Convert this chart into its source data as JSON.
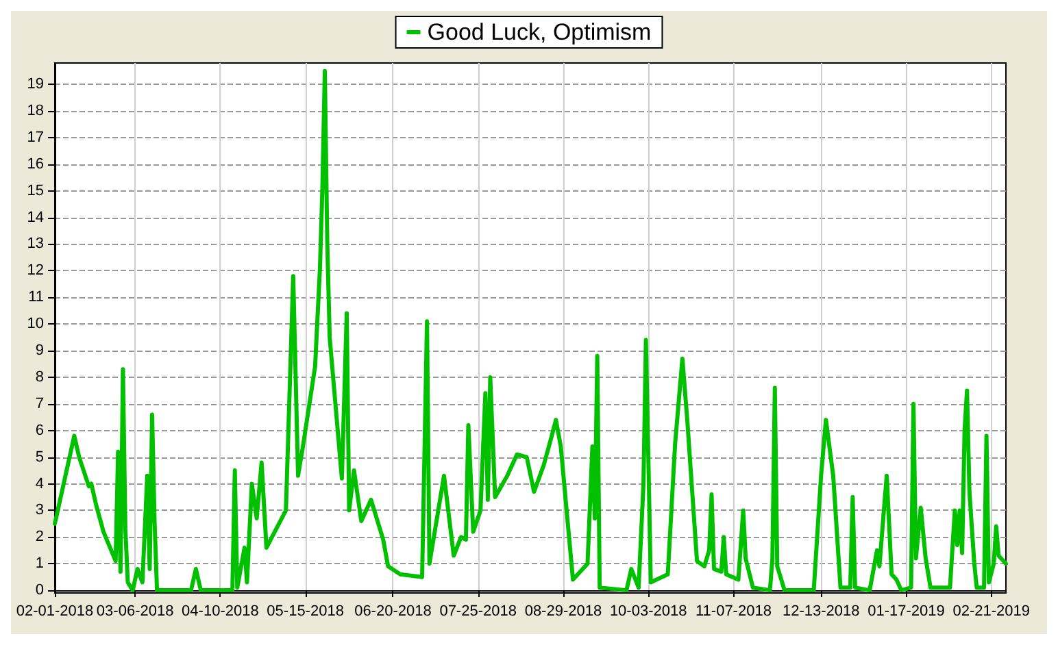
{
  "chart_data": {
    "type": "line",
    "xlim": [
      "2018-02-01",
      "2019-02-27"
    ],
    "xticks": [
      {
        "value": "2018-02-01",
        "label": "02-01-2018"
      },
      {
        "value": "2018-03-06",
        "label": "03-06-2018"
      },
      {
        "value": "2018-04-10",
        "label": "04-10-2018"
      },
      {
        "value": "2018-05-15",
        "label": "05-15-2018"
      },
      {
        "value": "2018-06-20",
        "label": "06-20-2018"
      },
      {
        "value": "2018-07-25",
        "label": "07-25-2018"
      },
      {
        "value": "2018-08-29",
        "label": "08-29-2018"
      },
      {
        "value": "2018-10-03",
        "label": "10-03-2018"
      },
      {
        "value": "2018-11-07",
        "label": "11-07-2018"
      },
      {
        "value": "2018-12-13",
        "label": "12-13-2018"
      },
      {
        "value": "2019-01-17",
        "label": "01-17-2019"
      },
      {
        "value": "2019-02-21",
        "label": "02-21-2019"
      }
    ],
    "ylim": [
      -0.1,
      19.8
    ],
    "yticks": [
      0,
      1,
      2,
      3,
      4,
      5,
      6,
      7,
      8,
      9,
      10,
      11,
      12,
      13,
      14,
      15,
      16,
      17,
      18,
      19
    ],
    "grid": true,
    "legend": "top",
    "marker": "none",
    "line_style": "solid",
    "x": [
      "2018-02-01",
      "2018-02-09",
      "2018-02-11",
      "2018-02-15",
      "2018-02-16",
      "2018-02-18",
      "2018-02-21",
      "2018-02-26",
      "2018-02-27",
      "2018-02-28",
      "2018-03-01",
      "2018-03-02",
      "2018-03-03",
      "2018-03-05",
      "2018-03-07",
      "2018-03-09",
      "2018-03-11",
      "2018-03-12",
      "2018-03-13",
      "2018-03-14",
      "2018-03-15",
      "2018-03-29",
      "2018-03-31",
      "2018-04-02",
      "2018-04-15",
      "2018-04-16",
      "2018-04-17",
      "2018-04-20",
      "2018-04-21",
      "2018-04-23",
      "2018-04-25",
      "2018-04-27",
      "2018-04-29",
      "2018-05-07",
      "2018-05-10",
      "2018-05-12",
      "2018-05-14",
      "2018-05-19",
      "2018-05-21",
      "2018-05-22",
      "2018-05-23",
      "2018-05-24",
      "2018-05-25",
      "2018-05-30",
      "2018-06-01",
      "2018-06-02",
      "2018-06-04",
      "2018-06-07",
      "2018-06-11",
      "2018-06-16",
      "2018-06-18",
      "2018-06-23",
      "2018-07-02",
      "2018-07-04",
      "2018-07-05",
      "2018-07-11",
      "2018-07-15",
      "2018-07-18",
      "2018-07-20",
      "2018-07-21",
      "2018-07-23",
      "2018-07-26",
      "2018-07-28",
      "2018-07-29",
      "2018-07-30",
      "2018-08-01",
      "2018-08-06",
      "2018-08-10",
      "2018-08-14",
      "2018-08-17",
      "2018-08-21",
      "2018-08-24",
      "2018-08-26",
      "2018-08-28",
      "2018-09-02",
      "2018-09-08",
      "2018-09-10",
      "2018-09-11",
      "2018-09-12",
      "2018-09-13",
      "2018-09-24",
      "2018-09-26",
      "2018-09-29",
      "2018-10-01",
      "2018-10-02",
      "2018-10-03",
      "2018-10-04",
      "2018-10-11",
      "2018-10-14",
      "2018-10-17",
      "2018-10-19",
      "2018-10-23",
      "2018-10-26",
      "2018-10-28",
      "2018-10-29",
      "2018-10-30",
      "2018-11-02",
      "2018-11-03",
      "2018-11-04",
      "2018-11-09",
      "2018-11-11",
      "2018-11-12",
      "2018-11-15",
      "2018-11-22",
      "2018-11-23",
      "2018-11-24",
      "2018-11-25",
      "2018-11-28",
      "2018-12-10",
      "2018-12-13",
      "2018-12-15",
      "2018-12-18",
      "2018-12-21",
      "2018-12-25",
      "2018-12-26",
      "2018-12-27",
      "2019-01-02",
      "2019-01-05",
      "2019-01-06",
      "2019-01-08",
      "2019-01-09",
      "2019-01-11",
      "2019-01-13",
      "2019-01-15",
      "2019-01-19",
      "2019-01-20",
      "2019-01-21",
      "2019-01-23",
      "2019-01-25",
      "2019-01-27",
      "2019-02-04",
      "2019-02-06",
      "2019-02-07",
      "2019-02-08",
      "2019-02-09",
      "2019-02-10",
      "2019-02-11",
      "2019-02-12",
      "2019-02-14",
      "2019-02-15",
      "2019-02-18",
      "2019-02-19",
      "2019-02-20",
      "2019-02-22",
      "2019-02-23",
      "2019-02-24",
      "2019-02-27"
    ],
    "series": [
      {
        "name": "Good Luck, Optimism",
        "color": "#00c000",
        "values": [
          2.5,
          5.8,
          5.0,
          3.9,
          4.0,
          3.2,
          2.2,
          1.1,
          5.2,
          0.7,
          8.3,
          2.3,
          0.3,
          0,
          0.8,
          0.3,
          4.3,
          0.8,
          6.6,
          2.6,
          0,
          0,
          0.8,
          0,
          0,
          4.5,
          0.1,
          1.6,
          0.3,
          4.0,
          2.7,
          4.8,
          1.6,
          3.0,
          11.8,
          4.3,
          5.4,
          8.4,
          12.1,
          15.1,
          19.5,
          13.1,
          9.5,
          4.2,
          10.4,
          3.0,
          4.5,
          2.6,
          3.4,
          1.9,
          0.9,
          0.6,
          0.5,
          10.1,
          1.0,
          4.3,
          1.3,
          2.0,
          1.9,
          6.2,
          2.2,
          3.0,
          7.4,
          3.4,
          8.0,
          3.5,
          4.3,
          5.1,
          5.0,
          3.7,
          4.7,
          5.7,
          6.4,
          5.4,
          0.4,
          1.0,
          5.4,
          2.7,
          8.8,
          0.1,
          0,
          0.8,
          0.1,
          4.0,
          9.4,
          5.0,
          0.3,
          0.6,
          5.5,
          8.7,
          6.4,
          1.1,
          0.9,
          1.5,
          3.6,
          0.8,
          0.7,
          2.0,
          0.6,
          0.4,
          3.0,
          1.2,
          0.1,
          0,
          1.2,
          7.6,
          0.9,
          0,
          0,
          4.3,
          6.4,
          4.3,
          0.1,
          0.1,
          3.5,
          0.1,
          0,
          1.5,
          0.9,
          3.2,
          4.3,
          0.6,
          0.4,
          0,
          0.1,
          7.0,
          1.2,
          3.1,
          1.2,
          0.1,
          0.1,
          3.0,
          1.7,
          3.0,
          1.4,
          6.0,
          7.5,
          3.7,
          1.0,
          0.1,
          0.1,
          5.8,
          0.3,
          1.0,
          2.4,
          1.3,
          1.0
        ]
      }
    ]
  }
}
